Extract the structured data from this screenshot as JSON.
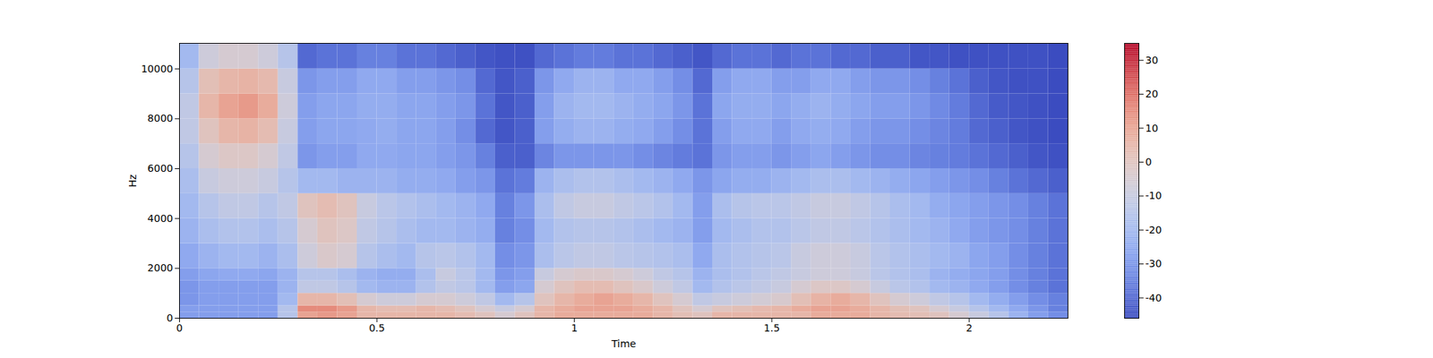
{
  "chart_data": {
    "type": "heatmap",
    "x_label": "Time",
    "y_label": "Hz",
    "xlim": [
      0,
      2.25
    ],
    "xticks": [
      0,
      0.5,
      1,
      1.5,
      2
    ],
    "ylim": [
      0,
      11025
    ],
    "yticks": [
      0,
      2000,
      4000,
      6000,
      8000,
      10000
    ],
    "cells": {
      "time_edges": [
        0,
        0.05,
        0.1,
        0.15,
        0.2,
        0.25,
        0.3,
        0.35,
        0.4,
        0.45,
        0.5,
        0.55,
        0.6,
        0.65,
        0.7,
        0.75,
        0.8,
        0.85,
        0.9,
        0.95,
        1,
        1.05,
        1.1,
        1.15,
        1.2,
        1.25,
        1.3,
        1.35,
        1.4,
        1.45,
        1.5,
        1.55,
        1.6,
        1.65,
        1.7,
        1.75,
        1.8,
        1.85,
        1.9,
        1.95,
        2,
        2.05,
        2.1,
        2.15,
        2.2,
        2.25
      ],
      "freq_edges": [
        0,
        250,
        500,
        1000,
        1500,
        2000,
        3000,
        4000,
        5000,
        6000,
        7000,
        8000,
        9000,
        10000,
        11025
      ],
      "values": [
        [
          -28,
          -28,
          -28,
          -28,
          -28,
          -15,
          10,
          12,
          10,
          5,
          5,
          5,
          5,
          5,
          3,
          0,
          -5,
          0,
          5,
          8,
          8,
          8,
          8,
          8,
          5,
          2,
          0,
          5,
          5,
          5,
          5,
          5,
          8,
          8,
          8,
          5,
          3,
          2,
          0,
          -5,
          -10,
          -15,
          -22,
          -28,
          -32
        ],
        [
          -28,
          -28,
          -28,
          -28,
          -28,
          -15,
          15,
          15,
          12,
          5,
          3,
          3,
          5,
          3,
          0,
          -5,
          -10,
          -5,
          5,
          8,
          10,
          10,
          10,
          8,
          5,
          0,
          -5,
          0,
          2,
          4,
          5,
          8,
          10,
          10,
          8,
          5,
          2,
          0,
          -5,
          -10,
          -15,
          -20,
          -25,
          -30,
          -35
        ],
        [
          -30,
          -28,
          -28,
          -28,
          -28,
          -20,
          5,
          5,
          2,
          -5,
          -8,
          -8,
          -5,
          -5,
          -8,
          -12,
          -20,
          -15,
          0,
          5,
          8,
          10,
          8,
          5,
          0,
          -5,
          -12,
          -10,
          -8,
          -6,
          -4,
          2,
          6,
          8,
          5,
          0,
          -5,
          -8,
          -12,
          -15,
          -20,
          -24,
          -28,
          -32,
          -35
        ],
        [
          -30,
          -28,
          -28,
          -28,
          -28,
          -22,
          -12,
          -12,
          -15,
          -20,
          -22,
          -22,
          -16,
          -12,
          -14,
          -20,
          -28,
          -26,
          -5,
          0,
          3,
          3,
          0,
          -3,
          -8,
          -12,
          -20,
          -16,
          -14,
          -12,
          -10,
          -5,
          -2,
          -2,
          -5,
          -10,
          -14,
          -16,
          -20,
          -22,
          -25,
          -28,
          -32,
          -35,
          -38
        ],
        [
          -28,
          -26,
          -25,
          -25,
          -26,
          -22,
          -15,
          -15,
          -18,
          -22,
          -24,
          -24,
          -18,
          -10,
          -14,
          -20,
          -30,
          -28,
          -10,
          -5,
          -3,
          -3,
          -5,
          -8,
          -12,
          -15,
          -22,
          -18,
          -16,
          -14,
          -12,
          -10,
          -8,
          -8,
          -10,
          -14,
          -16,
          -18,
          -22,
          -24,
          -26,
          -28,
          -32,
          -35,
          -38
        ],
        [
          -25,
          -22,
          -20,
          -20,
          -22,
          -18,
          -8,
          -3,
          -5,
          -15,
          -18,
          -20,
          -15,
          -14,
          -16,
          -20,
          -32,
          -30,
          -18,
          -14,
          -12,
          -12,
          -14,
          -15,
          -16,
          -18,
          -25,
          -18,
          -16,
          -15,
          -14,
          -10,
          -8,
          -8,
          -10,
          -14,
          -16,
          -18,
          -20,
          -22,
          -26,
          -28,
          -32,
          -35,
          -38
        ],
        [
          -22,
          -18,
          -16,
          -16,
          -18,
          -15,
          -5,
          0,
          -2,
          -12,
          -15,
          -18,
          -20,
          -20,
          -22,
          -24,
          -35,
          -32,
          -20,
          -16,
          -15,
          -15,
          -16,
          -18,
          -20,
          -22,
          -28,
          -20,
          -18,
          -16,
          -16,
          -14,
          -12,
          -12,
          -14,
          -16,
          -18,
          -20,
          -22,
          -25,
          -28,
          -30,
          -32,
          -35,
          -38
        ],
        [
          -20,
          -15,
          -12,
          -12,
          -15,
          -12,
          0,
          3,
          0,
          -10,
          -14,
          -16,
          -18,
          -20,
          -22,
          -25,
          -35,
          -30,
          -18,
          -12,
          -10,
          -10,
          -12,
          -14,
          -16,
          -20,
          -28,
          -18,
          -15,
          -14,
          -14,
          -12,
          -10,
          -10,
          -12,
          -15,
          -18,
          -20,
          -24,
          -26,
          -28,
          -30,
          -32,
          -35,
          -38
        ],
        [
          -18,
          -10,
          -8,
          -8,
          -10,
          -15,
          -20,
          -20,
          -22,
          -22,
          -22,
          -24,
          -24,
          -25,
          -28,
          -30,
          -38,
          -36,
          -22,
          -18,
          -16,
          -16,
          -18,
          -20,
          -22,
          -25,
          -30,
          -26,
          -24,
          -24,
          -22,
          -20,
          -18,
          -18,
          -20,
          -22,
          -24,
          -26,
          -28,
          -30,
          -32,
          -35,
          -38,
          -40,
          -42
        ],
        [
          -15,
          -5,
          -2,
          -2,
          -5,
          -12,
          -30,
          -28,
          -28,
          -25,
          -25,
          -26,
          -26,
          -28,
          -30,
          -35,
          -42,
          -42,
          -34,
          -30,
          -30,
          -30,
          -30,
          -32,
          -34,
          -36,
          -38,
          -30,
          -28,
          -28,
          -30,
          -28,
          -26,
          -28,
          -30,
          -32,
          -32,
          -34,
          -35,
          -36,
          -38,
          -40,
          -42,
          -44,
          -45
        ],
        [
          -12,
          0,
          5,
          6,
          3,
          -10,
          -28,
          -26,
          -26,
          -25,
          -24,
          -26,
          -26,
          -28,
          -32,
          -40,
          -44,
          -42,
          -28,
          -24,
          -22,
          -22,
          -24,
          -25,
          -28,
          -32,
          -38,
          -28,
          -25,
          -25,
          -28,
          -25,
          -24,
          -25,
          -28,
          -30,
          -30,
          -32,
          -34,
          -36,
          -40,
          -42,
          -44,
          -45,
          -46
        ],
        [
          -12,
          5,
          10,
          12,
          8,
          -8,
          -28,
          -26,
          -26,
          -24,
          -24,
          -26,
          -26,
          -28,
          -30,
          -38,
          -44,
          -42,
          -28,
          -22,
          -20,
          -20,
          -22,
          -24,
          -26,
          -30,
          -38,
          -26,
          -24,
          -24,
          -26,
          -24,
          -22,
          -24,
          -26,
          -28,
          -28,
          -30,
          -33,
          -36,
          -40,
          -43,
          -44,
          -45,
          -46
        ],
        [
          -15,
          2,
          5,
          6,
          4,
          -10,
          -30,
          -28,
          -28,
          -25,
          -25,
          -28,
          -28,
          -30,
          -32,
          -40,
          -44,
          -42,
          -30,
          -25,
          -22,
          -22,
          -25,
          -25,
          -28,
          -32,
          -40,
          -28,
          -25,
          -25,
          -28,
          -28,
          -25,
          -25,
          -28,
          -30,
          -30,
          -32,
          -35,
          -38,
          -42,
          -44,
          -45,
          -45,
          -46
        ],
        [
          -20,
          -8,
          -5,
          -5,
          -8,
          -15,
          -40,
          -38,
          -38,
          -35,
          -35,
          -38,
          -38,
          -40,
          -42,
          -44,
          -45,
          -45,
          -40,
          -38,
          -36,
          -36,
          -38,
          -38,
          -40,
          -42,
          -44,
          -40,
          -38,
          -38,
          -40,
          -38,
          -38,
          -40,
          -40,
          -42,
          -42,
          -44,
          -44,
          -45,
          -45,
          -45,
          -45,
          -45,
          -46
        ]
      ]
    },
    "colorbar": {
      "range": [
        -46,
        35
      ],
      "ticks": [
        -40,
        -30,
        -20,
        -10,
        0,
        10,
        20,
        30
      ]
    }
  }
}
